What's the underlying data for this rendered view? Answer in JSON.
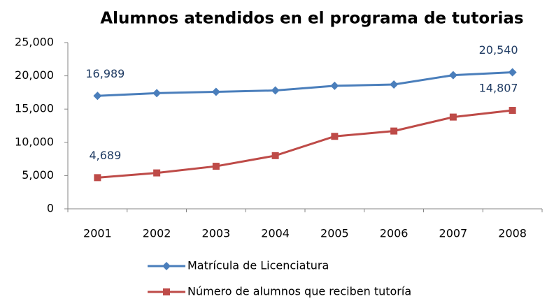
{
  "chart_data": {
    "type": "line",
    "title": "Alumnos atendidos en el programa de tutorias",
    "categories": [
      "2001",
      "2002",
      "2003",
      "2004",
      "2005",
      "2006",
      "2007",
      "2008"
    ],
    "series": [
      {
        "name": "Matrícula de Licenciatura",
        "color": "#4a7ebb",
        "marker": "diamond",
        "values": [
          16989,
          17400,
          17600,
          17800,
          18500,
          18700,
          20100,
          20540
        ],
        "value_labels": [
          "16,989",
          null,
          null,
          null,
          null,
          null,
          null,
          "20,540"
        ]
      },
      {
        "name": "Número de alumnos  que reciben tutoría",
        "color": "#be4b48",
        "marker": "square",
        "values": [
          4689,
          5400,
          6400,
          8000,
          10900,
          11700,
          13800,
          14807
        ],
        "value_labels": [
          "4,689",
          null,
          null,
          null,
          null,
          null,
          null,
          "14,807"
        ]
      }
    ],
    "ylim": [
      0,
      25000
    ],
    "yticks": [
      0,
      {
        "value": 5000,
        "label": "5,000"
      },
      {
        "value": 10000,
        "label": "10,000"
      },
      {
        "value": 15000,
        "label": "15,000"
      },
      {
        "value": 20000,
        "label": "20,000"
      },
      {
        "value": 25000,
        "label": "25,000"
      }
    ],
    "grid": false,
    "legend": "bottom"
  }
}
